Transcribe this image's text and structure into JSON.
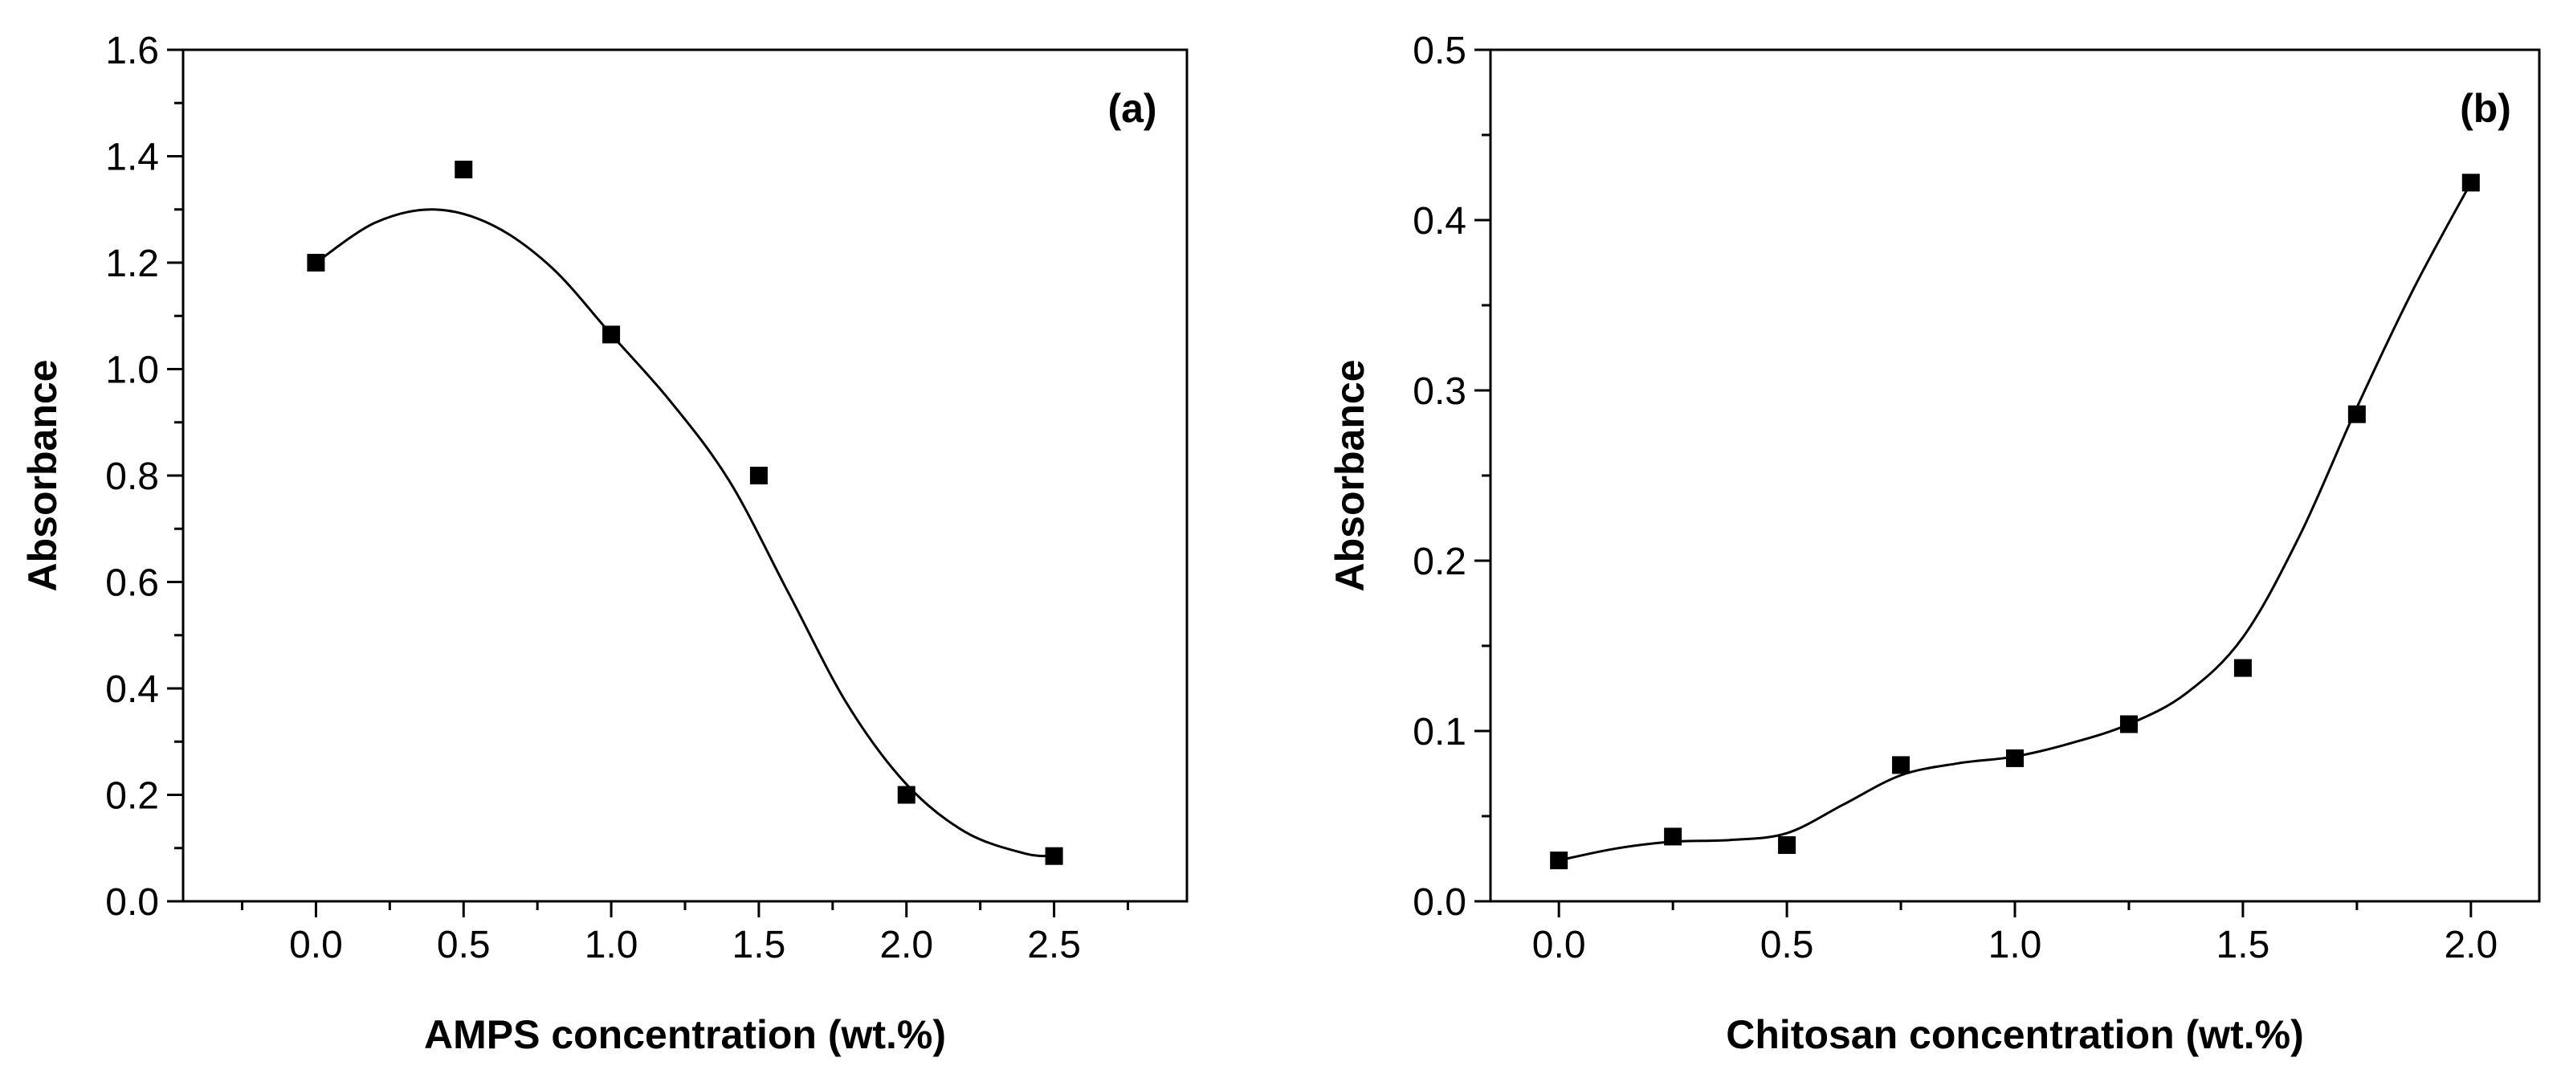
{
  "chart_data": [
    {
      "type": "scatter",
      "panel_label": "(a)",
      "xlabel": "AMPS concentration (wt.%)",
      "ylabel": "Absorbance",
      "xlim": [
        -0.45,
        2.95
      ],
      "ylim": [
        0.0,
        1.6
      ],
      "xticks": [
        0.0,
        0.5,
        1.0,
        1.5,
        2.0,
        2.5
      ],
      "xtick_labels": [
        "0.0",
        "0.5",
        "1.0",
        "1.5",
        "2.0",
        "2.5"
      ],
      "x_minor_ticks": [
        -0.25,
        0.25,
        0.75,
        1.25,
        1.75,
        2.25,
        2.75
      ],
      "yticks": [
        0.0,
        0.2,
        0.4,
        0.6,
        0.8,
        1.0,
        1.2,
        1.4,
        1.6
      ],
      "ytick_labels": [
        "0.0",
        "0.2",
        "0.4",
        "0.6",
        "0.8",
        "1.0",
        "1.2",
        "1.4",
        "1.6"
      ],
      "y_minor_ticks": [
        0.1,
        0.3,
        0.5,
        0.7,
        0.9,
        1.1,
        1.3,
        1.5
      ],
      "series": [
        {
          "name": "data",
          "x": [
            0.0,
            0.5,
            1.0,
            1.5,
            2.0,
            2.5
          ],
          "y": [
            1.2,
            1.375,
            1.065,
            0.8,
            0.2,
            0.085
          ]
        }
      ],
      "fit_curve": {
        "x": [
          0.0,
          0.2,
          0.4,
          0.6,
          0.8,
          1.0,
          1.2,
          1.4,
          1.6,
          1.8,
          2.0,
          2.2,
          2.4,
          2.5
        ],
        "y": [
          1.2,
          1.275,
          1.3,
          1.27,
          1.19,
          1.065,
          0.94,
          0.79,
          0.58,
          0.37,
          0.22,
          0.13,
          0.09,
          0.085
        ]
      }
    },
    {
      "type": "scatter",
      "panel_label": "(b)",
      "xlabel": "Chitosan concentration (wt.%)",
      "ylabel": "Absorbance",
      "xlim": [
        -0.15,
        2.15
      ],
      "ylim": [
        0.0,
        0.5
      ],
      "xticks": [
        0.0,
        0.5,
        1.0,
        1.5,
        2.0
      ],
      "xtick_labels": [
        "0.0",
        "0.5",
        "1.0",
        "1.5",
        "2.0"
      ],
      "x_minor_ticks": [
        0.25,
        0.75,
        1.25,
        1.75
      ],
      "yticks": [
        0.0,
        0.1,
        0.2,
        0.3,
        0.4,
        0.5
      ],
      "ytick_labels": [
        "0.0",
        "0.1",
        "0.2",
        "0.3",
        "0.4",
        "0.5"
      ],
      "y_minor_ticks": [
        0.05,
        0.15,
        0.25,
        0.35,
        0.45
      ],
      "series": [
        {
          "name": "data",
          "x": [
            0.0,
            0.25,
            0.5,
            0.75,
            1.0,
            1.25,
            1.5,
            1.75,
            2.0
          ],
          "y": [
            0.024,
            0.038,
            0.033,
            0.08,
            0.084,
            0.104,
            0.137,
            0.286,
            0.422
          ]
        }
      ],
      "fit_curve": {
        "x": [
          0.0,
          0.125,
          0.25,
          0.375,
          0.5,
          0.625,
          0.75,
          0.875,
          1.0,
          1.125,
          1.25,
          1.375,
          1.5,
          1.625,
          1.75,
          1.875,
          2.0
        ],
        "y": [
          0.024,
          0.031,
          0.035,
          0.036,
          0.04,
          0.057,
          0.074,
          0.081,
          0.085,
          0.093,
          0.104,
          0.122,
          0.155,
          0.215,
          0.29,
          0.36,
          0.422
        ]
      }
    }
  ]
}
